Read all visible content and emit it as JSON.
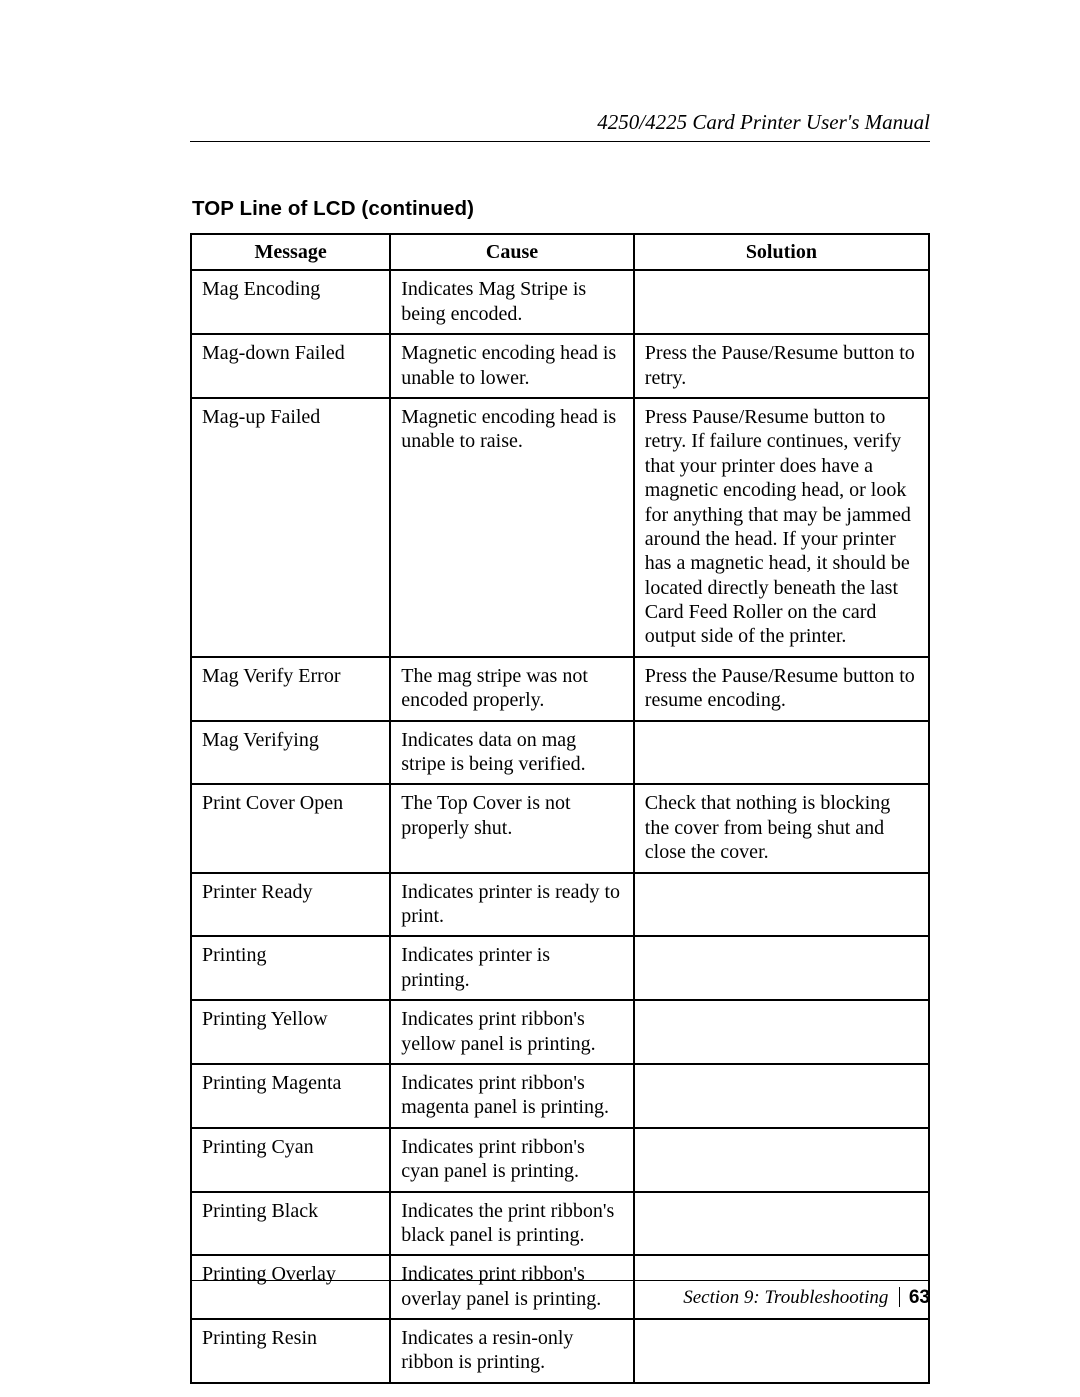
{
  "header": {
    "manual_title": "4250/4225 Card Printer User's Manual"
  },
  "section": {
    "title": "TOP Line of LCD (continued)"
  },
  "table": {
    "headers": {
      "message": "Message",
      "cause": "Cause",
      "solution": "Solution"
    },
    "rows": [
      {
        "message": "Mag Encoding",
        "cause": "Indicates Mag Stripe is being encoded.",
        "solution": ""
      },
      {
        "message": "Mag-down Failed",
        "cause": "Magnetic encoding head is unable to lower.",
        "solution": "Press the Pause/Resume button to retry."
      },
      {
        "message": "Mag-up Failed",
        "cause": "Magnetic encoding head is unable to raise.",
        "solution": "Press Pause/Resume button to retry.  If failure continues, verify that your printer does have a magnetic encoding head, or look for anything that may be jammed around the head.  If your printer has a magnetic head, it should be located directly beneath the last Card Feed Roller on the card output side of the printer."
      },
      {
        "message": "Mag Verify Error",
        "cause": "The mag stripe was not encoded properly.",
        "solution": "Press the Pause/Resume button to resume encoding."
      },
      {
        "message": "Mag Verifying",
        "cause": "Indicates data on mag stripe is being verified.",
        "solution": ""
      },
      {
        "message": "Print Cover Open",
        "cause": "The Top Cover is not properly shut.",
        "solution": "Check that nothing is blocking the cover from being shut and close the cover."
      },
      {
        "message": "Printer Ready",
        "cause": "Indicates printer is ready to print.",
        "solution": ""
      },
      {
        "message": "Printing",
        "cause": "Indicates printer is printing.",
        "solution": ""
      },
      {
        "message": "Printing Yellow",
        "cause": "Indicates print ribbon's yellow panel is printing.",
        "solution": ""
      },
      {
        "message": "Printing Magenta",
        "cause": "Indicates print ribbon's magenta panel is printing.",
        "solution": ""
      },
      {
        "message": "Printing Cyan",
        "cause": "Indicates print ribbon's cyan panel is printing.",
        "solution": ""
      },
      {
        "message": "Printing Black",
        "cause": "Indicates the print ribbon's black panel is printing.",
        "solution": ""
      },
      {
        "message": "Printing Overlay",
        "cause": "Indicates print ribbon's overlay panel is printing.",
        "solution": ""
      },
      {
        "message": "Printing Resin",
        "cause": "Indicates a resin-only ribbon is printing.",
        "solution": ""
      }
    ]
  },
  "footer": {
    "section_label": "Section 9:  Troubleshooting",
    "page_number": "63"
  }
}
